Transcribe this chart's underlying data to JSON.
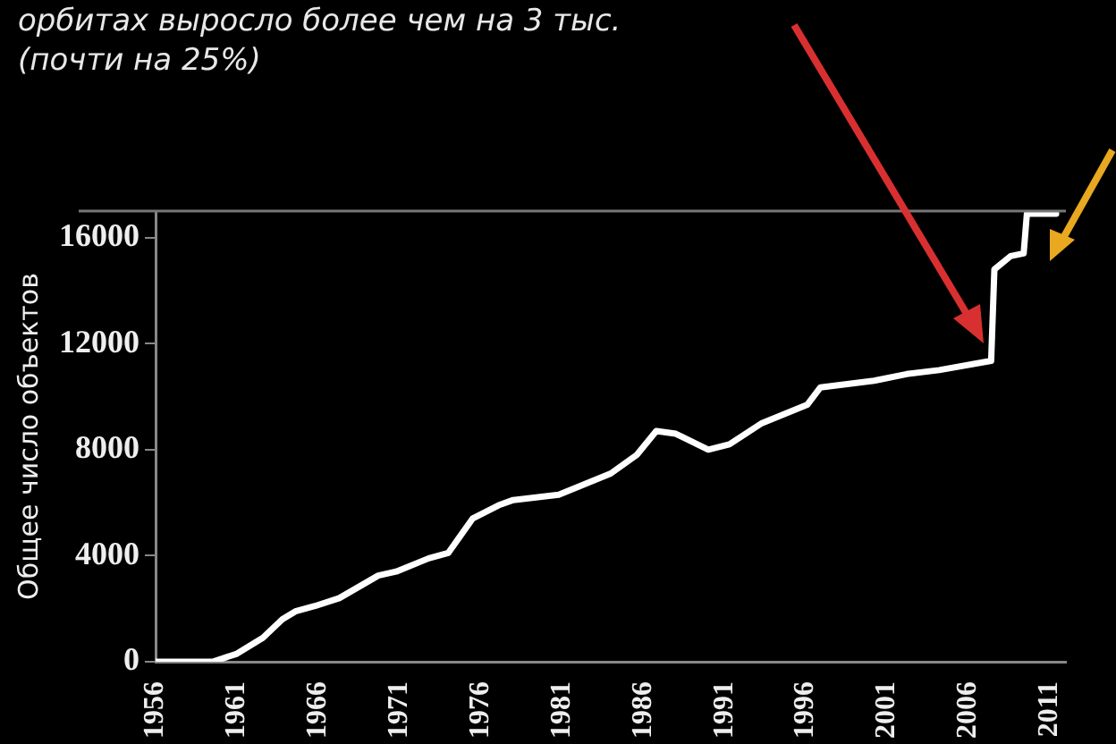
{
  "chart_data": {
    "type": "line",
    "ylabel": "Общее число объектов",
    "annotations": [
      "орбитах выросло более чем на 3 тыс.",
      "(почти на 25%)"
    ],
    "x": [
      1956,
      1959.5,
      1960,
      1961,
      1962.6,
      1963.8,
      1964.6,
      1965.8,
      1967.3,
      1969.7,
      1970.8,
      1972.8,
      1974,
      1975.5,
      1977.1,
      1978,
      1980.8,
      1984,
      1985.6,
      1986.8,
      1988,
      1990,
      1991.3,
      1993.3,
      1996.1,
      1996.9,
      2000.2,
      2002.2,
      2004.2,
      2007.4,
      2007.6,
      2008.6,
      2009.4,
      2009.6,
      2011.4
    ],
    "series": [
      {
        "color": "#ffffff",
        "values": [
          0,
          0,
          100,
          300,
          900,
          1600,
          1900,
          2100,
          2400,
          3250,
          3400,
          3900,
          4100,
          5400,
          5900,
          6100,
          6300,
          7100,
          7800,
          8700,
          8600,
          8000,
          8200,
          9000,
          9700,
          10350,
          10600,
          10850,
          11000,
          11350,
          14800,
          15300,
          15400,
          16900,
          16900
        ]
      }
    ],
    "xlim": [
      1956,
      2012
    ],
    "xticks": [
      1956,
      1961,
      1966,
      1971,
      1976,
      1981,
      1986,
      1991,
      1996,
      2001,
      2006,
      2011
    ],
    "ylim": [
      0,
      17000
    ],
    "yticks": [
      0,
      4000,
      8000,
      12000,
      16000
    ],
    "grid": false,
    "legend": false,
    "marker": "none",
    "line_style": "solid"
  }
}
